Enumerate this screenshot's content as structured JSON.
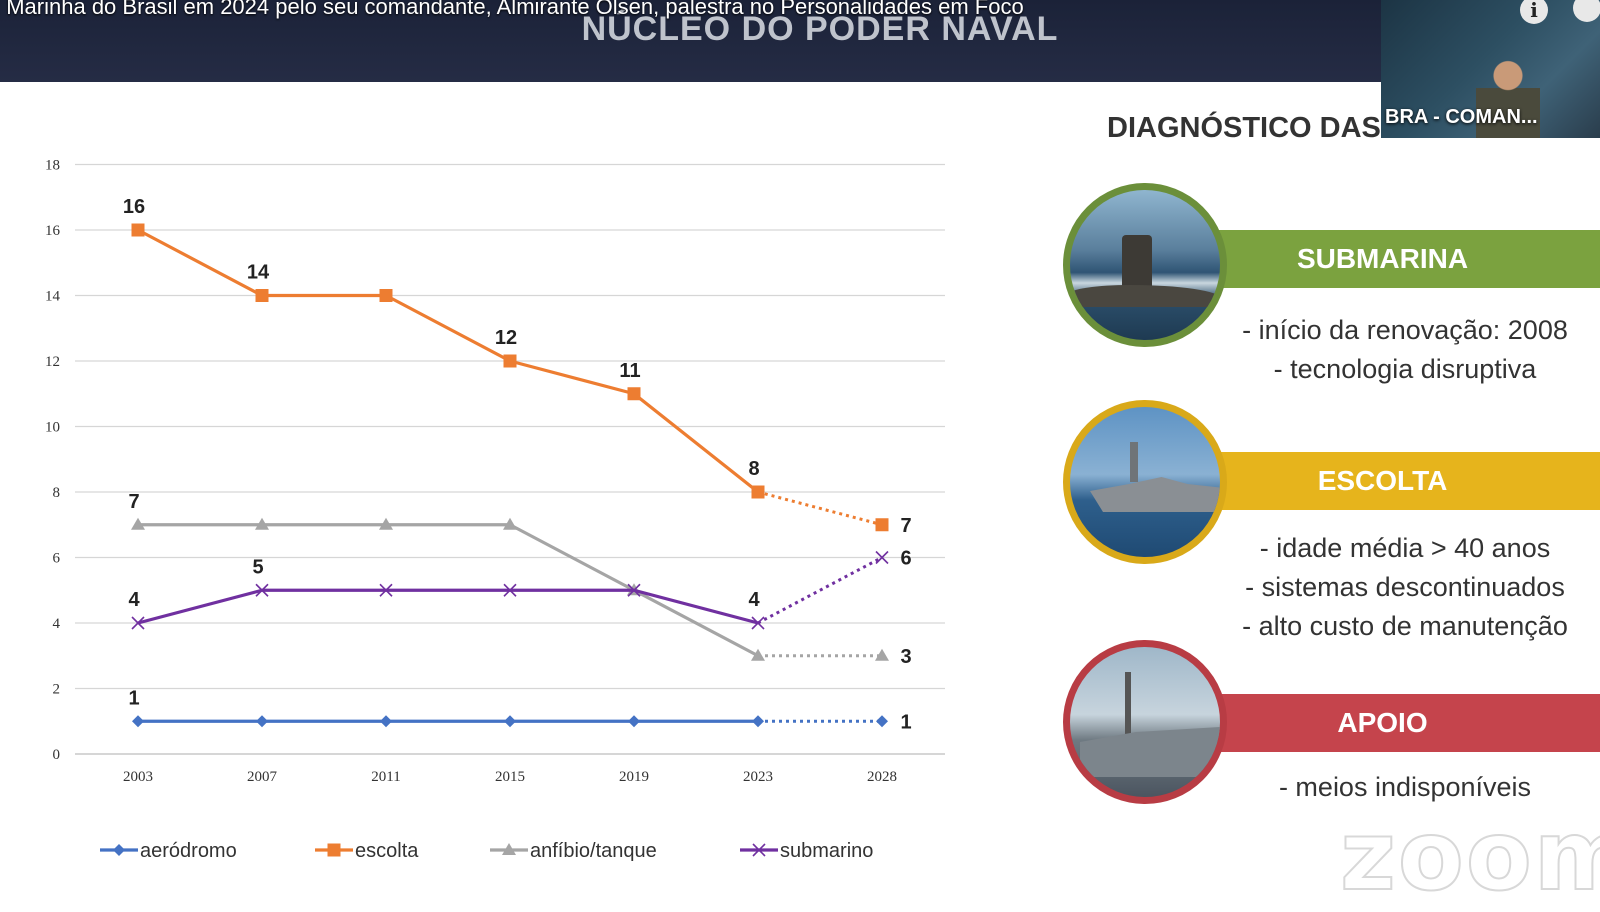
{
  "video": {
    "title": ": Marinha do Brasil em 2024 pelo seu comandante, Almirante Olsen, palestra no Personalidades em Foco",
    "participant_name": "BRA - COMAN..."
  },
  "slide": {
    "header": "NÚCLEO DO PODER NAVAL",
    "diagnosis_title": "DIAGNÓSTICO DAS CAPACIDADES",
    "categories": [
      {
        "name": "SUBMARINA",
        "color": "#7ba23f",
        "points": [
          "- início da renovação: 2008",
          "- tecnologia disruptiva"
        ]
      },
      {
        "name": "ESCOLTA",
        "color": "#e6b41c",
        "points": [
          "- idade média > 40 anos",
          "- sistemas descontinuados",
          "- alto custo de manutenção"
        ]
      },
      {
        "name": "APOIO",
        "color": "#c5444c",
        "points": [
          "- meios indisponíveis"
        ]
      }
    ],
    "watermark": "zoom"
  },
  "chart_data": {
    "type": "line",
    "categories": [
      "2003",
      "2007",
      "2011",
      "2015",
      "2019",
      "2023",
      "2028"
    ],
    "yticks": [
      0,
      2,
      4,
      6,
      8,
      10,
      12,
      14,
      16,
      18
    ],
    "ylim": [
      0,
      18
    ],
    "grid": true,
    "legend_position": "bottom",
    "projection_from_index": 5,
    "series": [
      {
        "name": "aeródromo",
        "color": "#4472c4",
        "marker": "diamond",
        "values": [
          1,
          1,
          1,
          1,
          1,
          1,
          1
        ],
        "labels": [
          "1",
          null,
          null,
          null,
          null,
          null,
          "1"
        ]
      },
      {
        "name": "escolta",
        "color": "#ed7d31",
        "marker": "square",
        "values": [
          16,
          14,
          14,
          12,
          11,
          8,
          7
        ],
        "labels": [
          "16",
          "14",
          null,
          "12",
          "11",
          "8",
          "7"
        ]
      },
      {
        "name": "anfíbio/tanque",
        "color": "#a5a5a5",
        "marker": "triangle",
        "values": [
          7,
          7,
          7,
          7,
          5,
          3,
          3
        ],
        "labels": [
          "7",
          null,
          null,
          null,
          null,
          null,
          "3"
        ]
      },
      {
        "name": "submarino",
        "color": "#7030a0",
        "marker": "x",
        "values": [
          4,
          5,
          5,
          5,
          5,
          4,
          6
        ],
        "labels": [
          "4",
          "5",
          null,
          null,
          null,
          "4",
          "6"
        ]
      }
    ]
  }
}
